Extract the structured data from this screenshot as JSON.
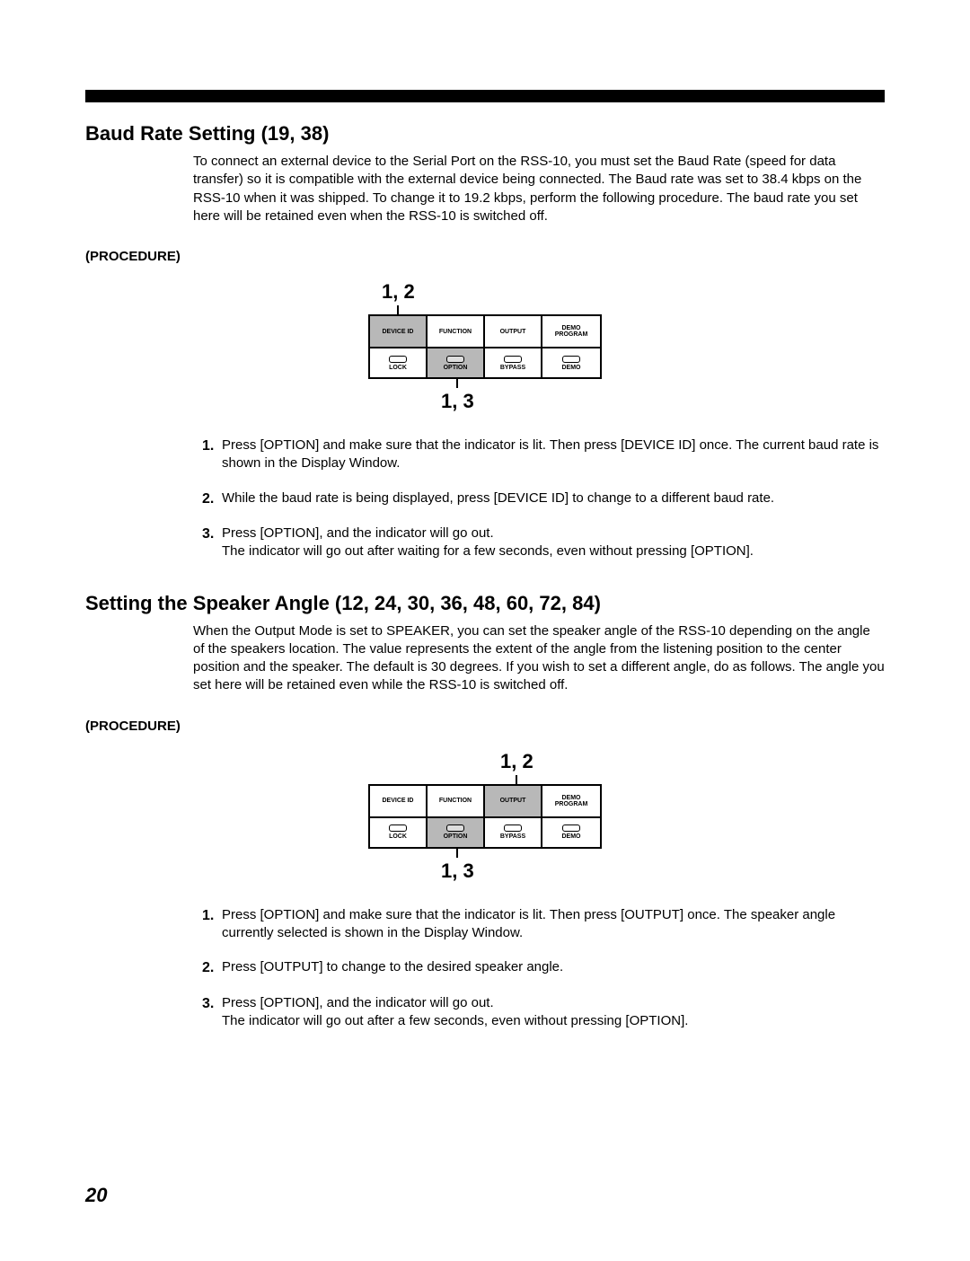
{
  "page_number": "20",
  "section1": {
    "title": "Baud Rate Setting (19, 38)",
    "intro": "To connect an external device to the Serial Port on the RSS-10, you must set the Baud Rate (speed for data transfer) so it is compatible with the external device being connected. The Baud rate was set to 38.4 kbps on the RSS-10 when it was shipped. To change it to 19.2 kbps, perform the following procedure. The baud rate you set here will be retained even when the RSS-10 is switched off.",
    "procedure_label": "(PROCEDURE)",
    "diagram": {
      "top_label": "1, 2",
      "bottom_label": "1, 3",
      "top_tick_col": 0,
      "bottom_tick_col": 1,
      "cells_top": [
        {
          "label": "DEVICE ID",
          "shaded": true,
          "cap": false
        },
        {
          "label": "FUNCTION",
          "shaded": false,
          "cap": false
        },
        {
          "label": "OUTPUT",
          "shaded": false,
          "cap": false
        },
        {
          "label": "DEMO\nPROGRAM",
          "shaded": false,
          "cap": false
        }
      ],
      "cells_bot": [
        {
          "label": "LOCK",
          "shaded": false,
          "cap": true
        },
        {
          "label": "OPTION",
          "shaded": true,
          "cap": true
        },
        {
          "label": "BYPASS",
          "shaded": false,
          "cap": true
        },
        {
          "label": "DEMO",
          "shaded": false,
          "cap": true
        }
      ]
    },
    "steps": [
      {
        "n": "1.",
        "t": "Press [OPTION] and make sure that the indicator is lit. Then press [DEVICE ID] once. The current baud rate is shown in the Display Window."
      },
      {
        "n": "2.",
        "t": "While the baud rate is being displayed, press [DEVICE ID] to change to a different baud rate."
      },
      {
        "n": "3.",
        "t": "Press [OPTION], and the indicator will go out.\nThe indicator will go out after waiting for a few seconds, even without pressing [OPTION]."
      }
    ]
  },
  "section2": {
    "title": "Setting the Speaker Angle (12, 24, 30, 36, 48, 60, 72, 84)",
    "intro": "When the Output Mode is set to SPEAKER, you can set the speaker angle of the RSS-10 depending on the angle of the speakers location. The value represents the extent of the angle from the listening position to the center position and the speaker. The default is 30 degrees. If you wish to set a different angle, do as follows. The angle you set here will be retained even while the RSS-10 is switched off.",
    "procedure_label": "(PROCEDURE)",
    "diagram": {
      "top_label": "1, 2",
      "bottom_label": "1, 3",
      "top_tick_col": 2,
      "bottom_tick_col": 1,
      "cells_top": [
        {
          "label": "DEVICE ID",
          "shaded": false,
          "cap": false
        },
        {
          "label": "FUNCTION",
          "shaded": false,
          "cap": false
        },
        {
          "label": "OUTPUT",
          "shaded": true,
          "cap": false
        },
        {
          "label": "DEMO\nPROGRAM",
          "shaded": false,
          "cap": false
        }
      ],
      "cells_bot": [
        {
          "label": "LOCK",
          "shaded": false,
          "cap": true
        },
        {
          "label": "OPTION",
          "shaded": true,
          "cap": true
        },
        {
          "label": "BYPASS",
          "shaded": false,
          "cap": true
        },
        {
          "label": "DEMO",
          "shaded": false,
          "cap": true
        }
      ]
    },
    "steps": [
      {
        "n": "1.",
        "t": "Press [OPTION] and make sure that the indicator is lit. Then press [OUTPUT] once. The speaker angle currently selected is shown in the Display Window."
      },
      {
        "n": "2.",
        "t": "Press [OUTPUT] to change to the desired speaker angle."
      },
      {
        "n": "3.",
        "t": "Press [OPTION], and the indicator will go out.\nThe indicator will go out after a few seconds, even without pressing [OPTION]."
      }
    ]
  }
}
